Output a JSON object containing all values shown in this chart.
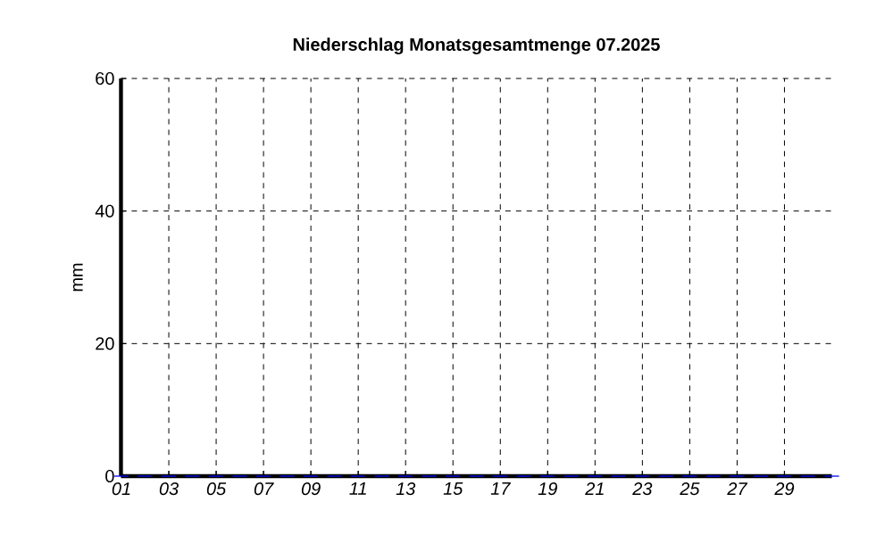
{
  "chart_data": {
    "type": "bar",
    "title": "Niederschlag Monatsgesamtmenge   07.2025",
    "ylabel": "mm",
    "categories": [
      "01",
      null,
      "03",
      null,
      "05",
      null,
      "07",
      null,
      "09",
      null,
      "11",
      null,
      "13",
      null,
      "15",
      null,
      "17",
      null,
      "19",
      null,
      "21",
      null,
      "23",
      null,
      "25",
      null,
      "27",
      null,
      "29",
      null,
      null
    ],
    "values": [
      0,
      0,
      0,
      0,
      0,
      0,
      0,
      0,
      0,
      0,
      0,
      0,
      0,
      0,
      0,
      0,
      0,
      0,
      0,
      0,
      0,
      0,
      0,
      0,
      0,
      0,
      0,
      0,
      0,
      0,
      0
    ],
    "ylim": [
      0,
      60
    ],
    "yticks": [
      0,
      20,
      40,
      60
    ],
    "grid": true
  }
}
